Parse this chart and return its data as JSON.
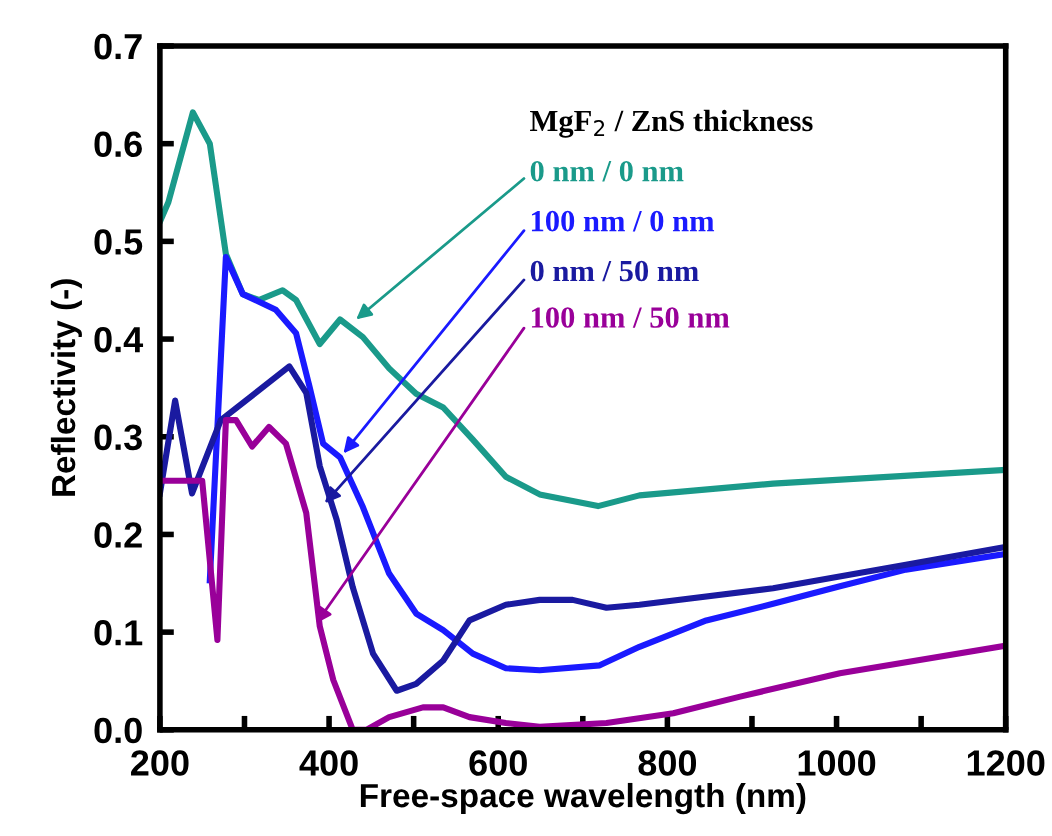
{
  "chart_data": {
    "type": "line",
    "xlabel": "Free-space wavelength (nm)",
    "ylabel": "Reflectivity (-)",
    "legend_title": "MgF$_{2}$ / ZnS thickness",
    "xlim": [
      200,
      1200
    ],
    "ylim": [
      0.0,
      0.7
    ],
    "xticks": [
      200,
      {
        "value": 300,
        "label": null
      },
      400,
      {
        "value": 500,
        "label": null
      },
      600,
      {
        "value": 700,
        "label": null
      },
      800,
      {
        "value": 900,
        "label": null
      },
      1000,
      {
        "value": 1100,
        "label": null
      },
      1200
    ],
    "yticks": [
      {
        "value": 0,
        "label": "0.0"
      },
      0.1,
      0.2,
      0.3,
      0.4,
      0.5,
      0.6,
      0.7
    ],
    "grid": false,
    "legend": false,
    "marker": "none",
    "line_style": "solid",
    "series": [
      {
        "color": "#1a9a8a",
        "x": [
          200,
          210,
          239,
          259,
          278,
          298,
          317,
          345,
          361,
          389,
          413,
          440,
          471,
          503,
          535,
          570,
          609,
          649,
          718,
          767,
          925,
          1199
        ],
        "values": [
          0.52,
          0.54,
          0.632,
          0.6,
          0.487,
          0.446,
          0.44,
          0.45,
          0.44,
          0.395,
          0.42,
          0.402,
          0.37,
          0.344,
          0.33,
          0.297,
          0.259,
          0.241,
          0.229,
          0.24,
          0.252,
          0.266
        ]
      },
      {
        "color": "#1a1aff",
        "x": [
          259,
          278,
          298,
          337,
          361,
          377,
          393,
          413,
          440,
          471,
          503,
          535,
          570,
          609,
          649,
          720,
          767,
          846,
          925,
          1004,
          1082,
          1199
        ],
        "values": [
          0.153,
          0.484,
          0.446,
          0.43,
          0.406,
          0.351,
          0.293,
          0.279,
          0.228,
          0.16,
          0.119,
          0.102,
          0.078,
          0.063,
          0.061,
          0.066,
          0.085,
          0.112,
          0.129,
          0.147,
          0.164,
          0.18
        ]
      },
      {
        "color": "#1a1aa0",
        "x": [
          200,
          218,
          238,
          272,
          353,
          373,
          389,
          409,
          428,
          452,
          480,
          503,
          535,
          566,
          609,
          649,
          688,
          728,
          767,
          925,
          1082,
          1199
        ],
        "values": [
          0.242,
          0.337,
          0.242,
          0.317,
          0.372,
          0.345,
          0.27,
          0.215,
          0.146,
          0.078,
          0.04,
          0.047,
          0.071,
          0.112,
          0.128,
          0.133,
          0.133,
          0.125,
          0.128,
          0.145,
          0.169,
          0.187
        ]
      },
      {
        "color": "#990099",
        "x": [
          200,
          250,
          268,
          278,
          290,
          309,
          329,
          349,
          373,
          389,
          405,
          428,
          444,
          471,
          511,
          535,
          566,
          609,
          649,
          728,
          807,
          886,
          1004,
          1199
        ],
        "values": [
          0.255,
          0.255,
          0.092,
          0.317,
          0.317,
          0.29,
          0.31,
          0.293,
          0.222,
          0.106,
          0.051,
          0.0,
          0.0,
          0.013,
          0.023,
          0.023,
          0.013,
          0.007,
          0.003,
          0.007,
          0.017,
          0.034,
          0.058,
          0.086
        ]
      }
    ],
    "annotations": [
      {
        "text": "0 nm / 0 nm",
        "x": 432,
        "y": 0.42
      },
      {
        "text": "100 nm / 0 nm",
        "x": 417,
        "y": 0.283
      },
      {
        "text": "0 nm / 50 nm",
        "x": 395,
        "y": 0.232
      },
      {
        "text": "100 nm / 50 nm",
        "x": 385,
        "y": 0.109
      }
    ]
  }
}
